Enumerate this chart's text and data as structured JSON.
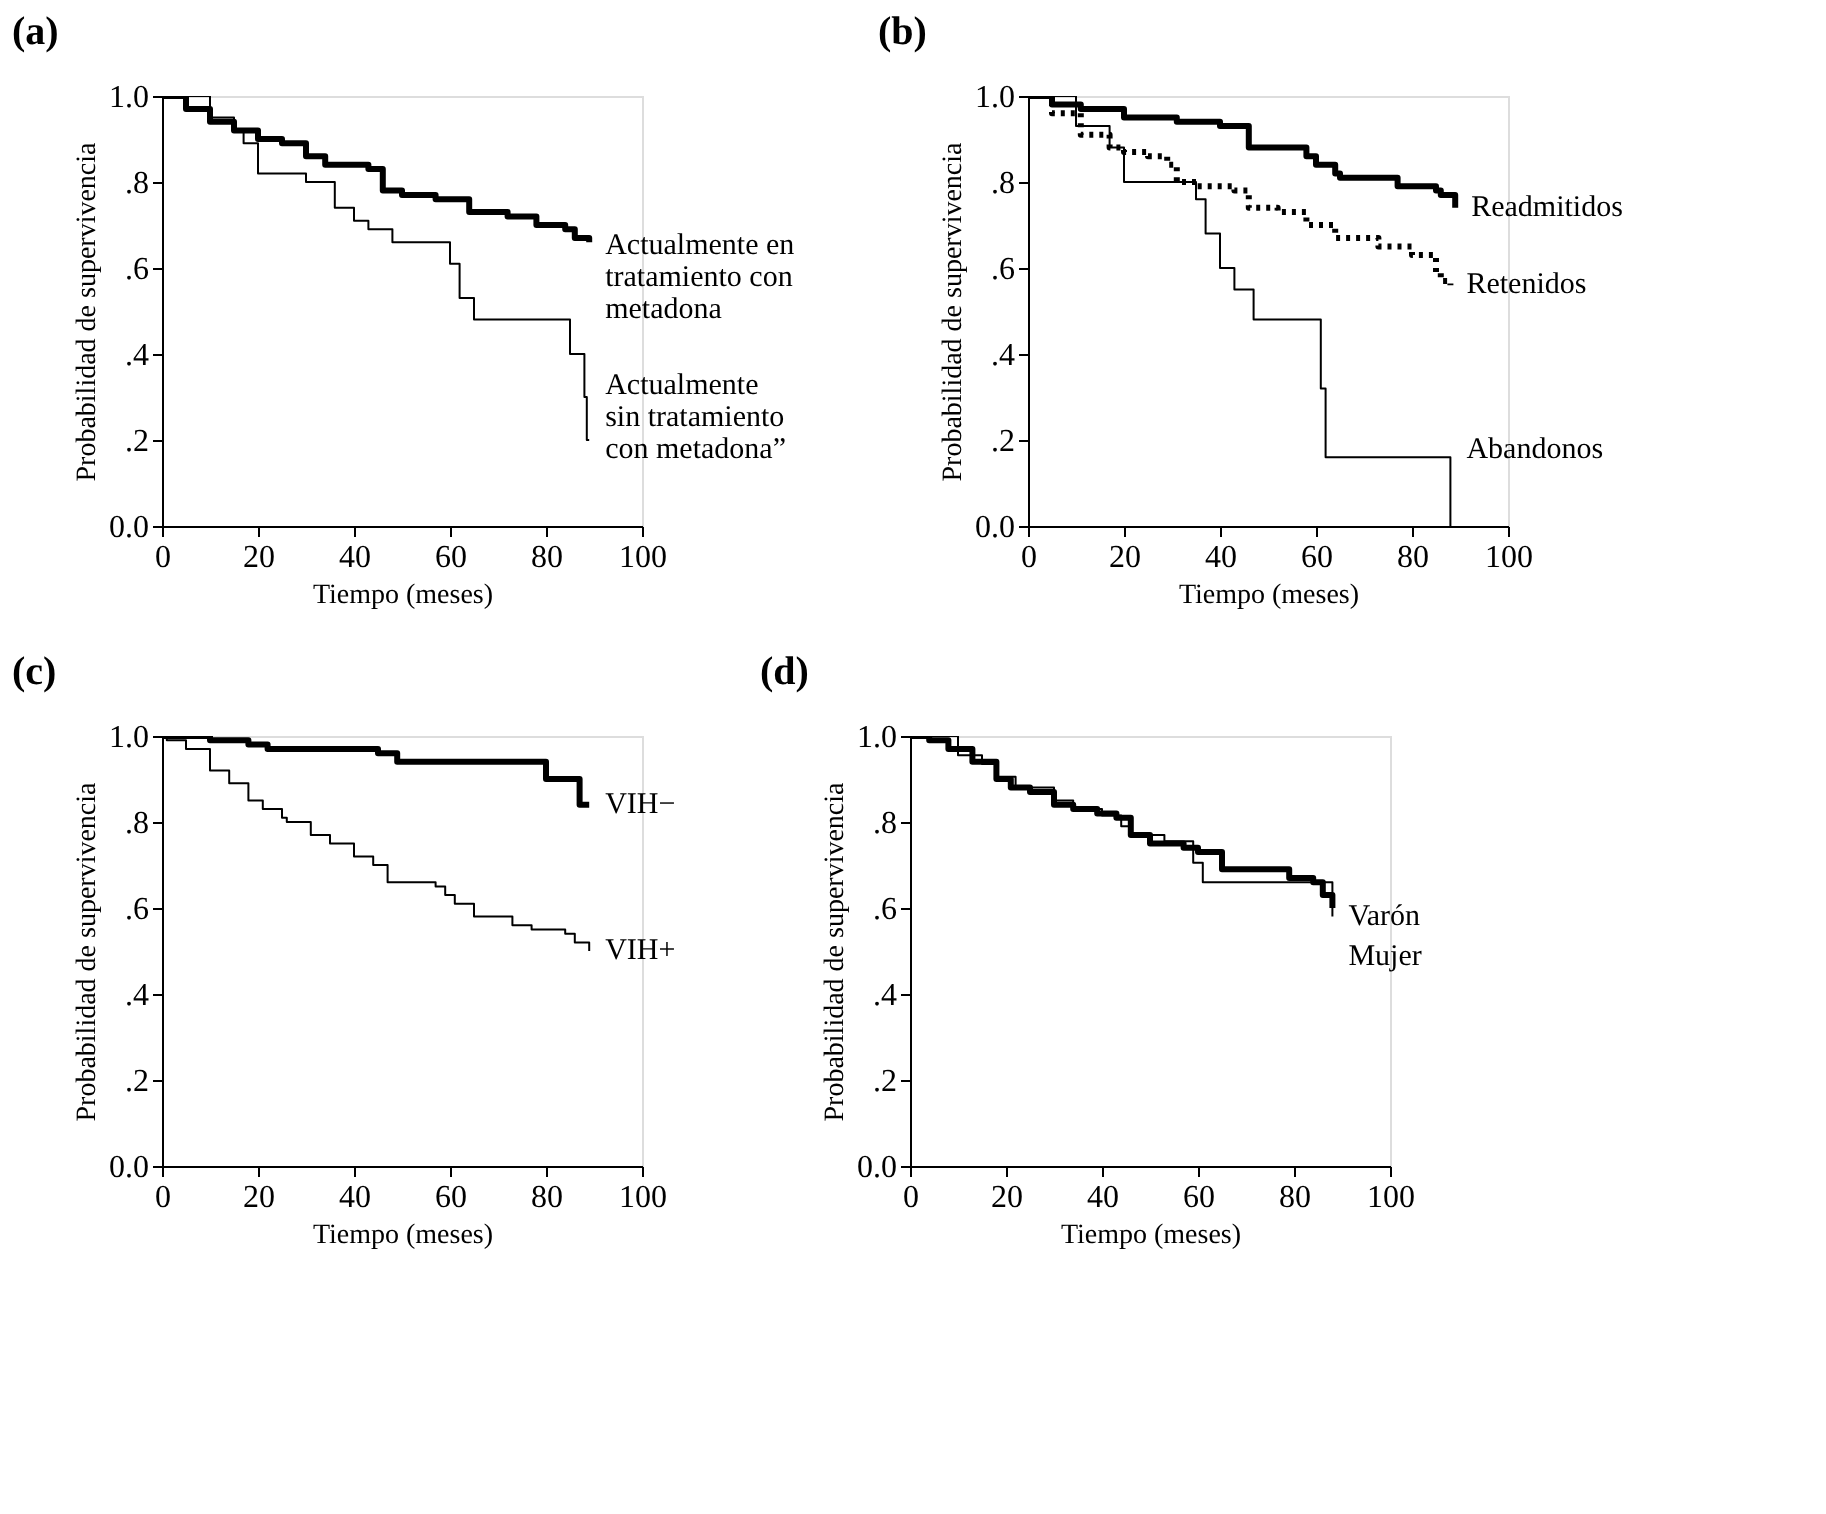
{
  "chart_data": [
    {
      "type": "step",
      "title": "(a)",
      "xlabel": "Tiempo (meses)",
      "ylabel": "Probabilidad de supervivencia",
      "xlim": [
        0,
        100
      ],
      "ylim": [
        0,
        1
      ],
      "xticks": [
        0,
        20,
        40,
        60,
        80,
        100
      ],
      "yticks": [
        {
          "value": 0,
          "label": "0.0"
        },
        {
          "value": 0.2,
          "label": ".2"
        },
        {
          "value": 0.4,
          "label": ".4"
        },
        {
          "value": 0.6,
          "label": ".6"
        },
        {
          "value": 0.8,
          "label": ".8"
        },
        {
          "value": 1,
          "label": "1.0"
        }
      ],
      "grid": false,
      "series": [
        {
          "name": "Actualmente en\ntratamiento con\nmetadona",
          "color": "#000000",
          "x": [
            0,
            5,
            10,
            15,
            20,
            25,
            30,
            34,
            43,
            46,
            50,
            57,
            64,
            72,
            78,
            84,
            86,
            89
          ],
          "values": [
            1,
            0.97,
            0.94,
            0.92,
            0.9,
            0.89,
            0.86,
            0.84,
            0.83,
            0.78,
            0.77,
            0.76,
            0.73,
            0.72,
            0.7,
            0.69,
            0.67,
            0.66
          ]
        },
        {
          "name": "Actualmente\nsin tratamiento\ncon metadona”",
          "color": "#000000",
          "x": [
            0,
            10,
            15,
            17,
            20,
            30,
            36,
            40,
            43,
            48,
            60,
            62,
            65,
            85,
            88,
            88.5,
            89
          ],
          "values": [
            1,
            0.95,
            0.92,
            0.89,
            0.82,
            0.8,
            0.74,
            0.71,
            0.69,
            0.66,
            0.61,
            0.53,
            0.48,
            0.4,
            0.3,
            0.2,
            0.2
          ]
        }
      ]
    },
    {
      "type": "step",
      "title": "(b)",
      "xlabel": "Tiempo (meses)",
      "ylabel": "Probabilidad de supervivencia",
      "xlim": [
        0,
        100
      ],
      "ylim": [
        0,
        1
      ],
      "xticks": [
        0,
        20,
        40,
        60,
        80,
        100
      ],
      "yticks": [
        {
          "value": 0,
          "label": "0.0"
        },
        {
          "value": 0.2,
          "label": ".2"
        },
        {
          "value": 0.4,
          "label": ".4"
        },
        {
          "value": 0.6,
          "label": ".6"
        },
        {
          "value": 0.8,
          "label": ".8"
        },
        {
          "value": 1,
          "label": "1.0"
        }
      ],
      "grid": false,
      "series": [
        {
          "name": "Readmitidos",
          "color": "#000000",
          "x": [
            0,
            5,
            11,
            20,
            31,
            40,
            46,
            58,
            60,
            64,
            65,
            76,
            77,
            85,
            86,
            89
          ],
          "values": [
            1,
            0.98,
            0.97,
            0.95,
            0.94,
            0.93,
            0.88,
            0.86,
            0.84,
            0.82,
            0.81,
            0.81,
            0.79,
            0.78,
            0.77,
            0.74
          ]
        },
        {
          "name": "Retenidos",
          "color": "#000000",
          "line_style": "dotted",
          "x": [
            0,
            5,
            11,
            17,
            20,
            25,
            29,
            31,
            35,
            43,
            46,
            52,
            58,
            64,
            73,
            80,
            85,
            86,
            88
          ],
          "values": [
            1,
            0.96,
            0.91,
            0.88,
            0.87,
            0.86,
            0.84,
            0.8,
            0.79,
            0.78,
            0.74,
            0.73,
            0.7,
            0.67,
            0.65,
            0.63,
            0.59,
            0.57,
            0.56
          ]
        },
        {
          "name": "Abandonos",
          "color": "#000000",
          "x": [
            0,
            10,
            17,
            20,
            35,
            37,
            40,
            43,
            47,
            61,
            62,
            88
          ],
          "values": [
            1,
            0.93,
            0.88,
            0.8,
            0.76,
            0.68,
            0.6,
            0.55,
            0.48,
            0.32,
            0.16,
            0
          ]
        }
      ]
    },
    {
      "type": "step",
      "title": "(c)",
      "xlabel": "Tiempo (meses)",
      "ylabel": "Probabilidad de supervivencia",
      "xlim": [
        0,
        100
      ],
      "ylim": [
        0,
        1
      ],
      "xticks": [
        0,
        20,
        40,
        60,
        80,
        100
      ],
      "yticks": [
        {
          "value": 0,
          "label": "0.0"
        },
        {
          "value": 0.2,
          "label": ".2"
        },
        {
          "value": 0.4,
          "label": ".4"
        },
        {
          "value": 0.6,
          "label": ".6"
        },
        {
          "value": 0.8,
          "label": ".8"
        },
        {
          "value": 1,
          "label": "1.0"
        }
      ],
      "grid": false,
      "series": [
        {
          "name": "VIH−",
          "color": "#000000",
          "x": [
            0,
            10,
            18,
            22,
            45,
            49,
            80,
            87,
            89
          ],
          "values": [
            1,
            0.99,
            0.98,
            0.97,
            0.96,
            0.94,
            0.9,
            0.84,
            0.84
          ]
        },
        {
          "name": "VIH+",
          "color": "#000000",
          "x": [
            0,
            1,
            5,
            10,
            14,
            18,
            21,
            25,
            26,
            31,
            35,
            40,
            44,
            47,
            57,
            59,
            61,
            65,
            73,
            77,
            84,
            86,
            89
          ],
          "values": [
            1,
            0.99,
            0.97,
            0.92,
            0.89,
            0.85,
            0.83,
            0.81,
            0.8,
            0.77,
            0.75,
            0.72,
            0.7,
            0.66,
            0.65,
            0.63,
            0.61,
            0.58,
            0.56,
            0.55,
            0.54,
            0.52,
            0.5
          ]
        }
      ]
    },
    {
      "type": "step",
      "title": "(d)",
      "xlabel": "Tiempo (meses)",
      "ylabel": "Probabilidad de supervivencia",
      "xlim": [
        0,
        100
      ],
      "ylim": [
        0,
        1
      ],
      "xticks": [
        0,
        20,
        40,
        60,
        80,
        100
      ],
      "yticks": [
        {
          "value": 0,
          "label": "0.0"
        },
        {
          "value": 0.2,
          "label": ".2"
        },
        {
          "value": 0.4,
          "label": ".4"
        },
        {
          "value": 0.6,
          "label": ".6"
        },
        {
          "value": 0.8,
          "label": ".8"
        },
        {
          "value": 1,
          "label": "1.0"
        }
      ],
      "grid": false,
      "series": [
        {
          "name": "Varón",
          "color": "#000000",
          "x": [
            0,
            10,
            15,
            18,
            22,
            30,
            34,
            40,
            44,
            46,
            53,
            59,
            61,
            88
          ],
          "values": [
            1,
            0.955,
            0.935,
            0.905,
            0.88,
            0.85,
            0.83,
            0.815,
            0.79,
            0.77,
            0.755,
            0.705,
            0.66,
            0.58
          ]
        },
        {
          "name": "Mujer",
          "color": "#000000",
          "x": [
            0,
            4,
            8,
            13,
            18,
            21,
            25,
            30,
            34,
            39,
            43,
            46,
            50,
            57,
            60,
            65,
            72,
            79,
            84,
            86,
            88
          ],
          "values": [
            1,
            0.99,
            0.97,
            0.94,
            0.9,
            0.88,
            0.87,
            0.84,
            0.83,
            0.82,
            0.81,
            0.77,
            0.75,
            0.74,
            0.73,
            0.69,
            0.69,
            0.67,
            0.66,
            0.63,
            0.6
          ]
        }
      ]
    }
  ]
}
